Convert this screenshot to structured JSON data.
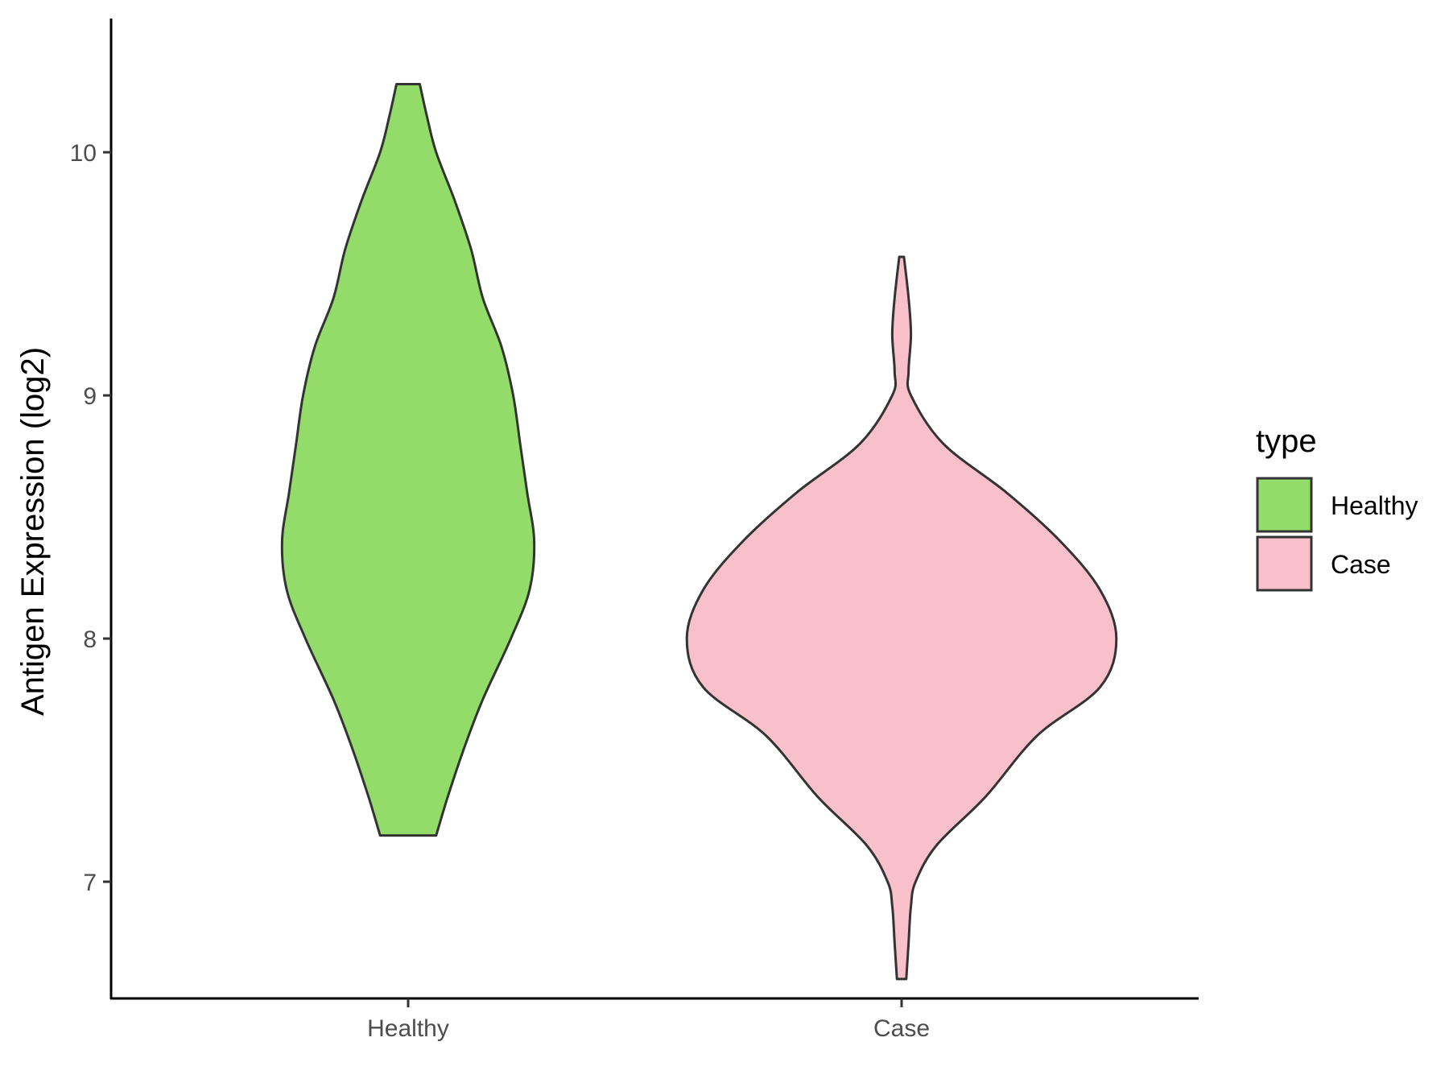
{
  "chart_data": {
    "type": "violin",
    "ylabel": "Antigen Expression (log2)",
    "xlabel": "",
    "ylim": [
      6.52,
      10.55
    ],
    "yticks": [
      7,
      8,
      9,
      10
    ],
    "categories": [
      "Healthy",
      "Case"
    ],
    "grid": false,
    "legend": {
      "title": "type",
      "placement": "right",
      "entries": [
        {
          "label": "Healthy",
          "color": "#93dc6a"
        },
        {
          "label": "Case",
          "color": "#f8c0cb"
        }
      ]
    },
    "series": [
      {
        "category": "Healthy",
        "color": "#93dc6a",
        "y_min": 7.19,
        "y_max": 10.28,
        "density_profile": [
          [
            7.19,
            0.12
          ],
          [
            7.35,
            0.17
          ],
          [
            7.55,
            0.24
          ],
          [
            7.75,
            0.32
          ],
          [
            8.0,
            0.44
          ],
          [
            8.2,
            0.52
          ],
          [
            8.4,
            0.54
          ],
          [
            8.6,
            0.51
          ],
          [
            8.8,
            0.48
          ],
          [
            9.0,
            0.45
          ],
          [
            9.2,
            0.4
          ],
          [
            9.4,
            0.32
          ],
          [
            9.6,
            0.27
          ],
          [
            9.8,
            0.2
          ],
          [
            10.0,
            0.12
          ],
          [
            10.15,
            0.08
          ],
          [
            10.28,
            0.05
          ]
        ]
      },
      {
        "category": "Case",
        "color": "#f8c0cb",
        "y_min": 6.6,
        "y_max": 9.57,
        "density_profile": [
          [
            6.6,
            0.02
          ],
          [
            6.75,
            0.03
          ],
          [
            6.9,
            0.04
          ],
          [
            7.0,
            0.06
          ],
          [
            7.15,
            0.15
          ],
          [
            7.35,
            0.36
          ],
          [
            7.6,
            0.58
          ],
          [
            7.8,
            0.85
          ],
          [
            8.0,
            0.92
          ],
          [
            8.2,
            0.85
          ],
          [
            8.4,
            0.68
          ],
          [
            8.6,
            0.45
          ],
          [
            8.8,
            0.18
          ],
          [
            9.0,
            0.04
          ],
          [
            9.1,
            0.03
          ],
          [
            9.25,
            0.04
          ],
          [
            9.4,
            0.03
          ],
          [
            9.57,
            0.01
          ]
        ]
      }
    ]
  }
}
